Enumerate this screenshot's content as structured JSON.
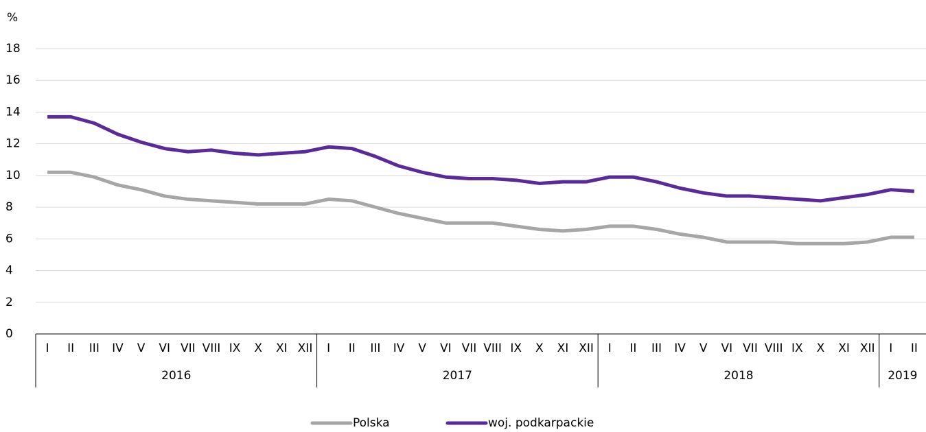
{
  "chart_data": {
    "type": "line",
    "y_label": "%",
    "groups": [
      {
        "label": "2016",
        "categories": [
          "I",
          "II",
          "III",
          "IV",
          "V",
          "VI",
          "VII",
          "VIII",
          "IX",
          "X",
          "XI",
          "XII"
        ]
      },
      {
        "label": "2017",
        "categories": [
          "I",
          "II",
          "III",
          "IV",
          "V",
          "VI",
          "VII",
          "VIII",
          "IX",
          "X",
          "XI",
          "XII"
        ]
      },
      {
        "label": "2018",
        "categories": [
          "I",
          "II",
          "III",
          "IV",
          "V",
          "VI",
          "VII",
          "VIII",
          "IX",
          "X",
          "XI",
          "XII"
        ]
      },
      {
        "label": "2019",
        "categories": [
          "I",
          "II"
        ]
      }
    ],
    "series": [
      {
        "name": "Polska",
        "color": "#a6a6a6",
        "values": [
          10.2,
          10.2,
          9.9,
          9.4,
          9.1,
          8.7,
          8.5,
          8.4,
          8.3,
          8.2,
          8.2,
          8.2,
          8.5,
          8.4,
          8.0,
          7.6,
          7.3,
          7.0,
          7.0,
          7.0,
          6.8,
          6.6,
          6.5,
          6.6,
          6.8,
          6.8,
          6.6,
          6.3,
          6.1,
          5.8,
          5.8,
          5.8,
          5.7,
          5.7,
          5.7,
          5.8,
          6.1,
          6.1
        ]
      },
      {
        "name": "woj. podkarpackie",
        "color": "#5b2a9a",
        "values": [
          13.7,
          13.7,
          13.3,
          12.6,
          12.1,
          11.7,
          11.5,
          11.6,
          11.4,
          11.3,
          11.4,
          11.5,
          11.8,
          11.7,
          11.2,
          10.6,
          10.2,
          9.9,
          9.8,
          9.8,
          9.7,
          9.5,
          9.6,
          9.6,
          9.9,
          9.9,
          9.6,
          9.2,
          8.9,
          8.7,
          8.7,
          8.6,
          8.5,
          8.4,
          8.6,
          8.8,
          9.1,
          9.0
        ]
      }
    ],
    "ylim": [
      0,
      18
    ],
    "yticks": [
      0,
      2,
      4,
      6,
      8,
      10,
      12,
      14,
      16,
      18
    ],
    "grid": true
  }
}
